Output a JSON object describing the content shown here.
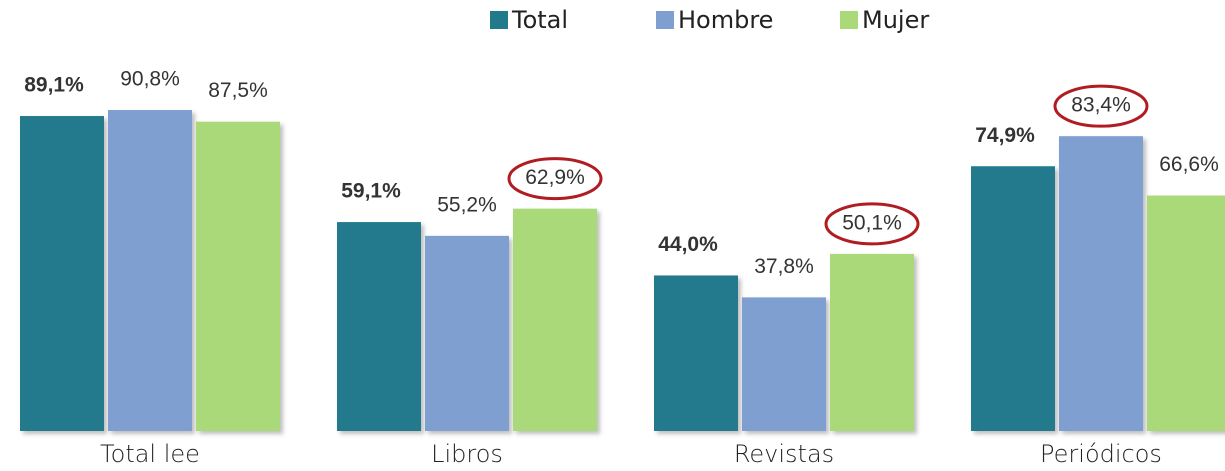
{
  "chart_data": {
    "type": "bar",
    "categories": [
      "Total lee",
      "Libros",
      "Revistas",
      "Periódicos"
    ],
    "series": [
      {
        "name": "Total",
        "color": "#217a8c",
        "values": [
          89.1,
          59.1,
          44.0,
          74.9
        ],
        "value_labels": [
          "89,1%",
          "59,1%",
          "44,0%",
          "74,9%"
        ]
      },
      {
        "name": "Hombre",
        "color": "#7f9fd1",
        "values": [
          90.8,
          55.2,
          37.8,
          83.4
        ],
        "value_labels": [
          "90,8%",
          "55,2%",
          "37,8%",
          "83,4%"
        ]
      },
      {
        "name": "Mujer",
        "color": "#a9d978",
        "values": [
          87.5,
          62.9,
          50.1,
          66.6
        ],
        "value_labels": [
          "87,5%",
          "62,9%",
          "50,1%",
          "66,6%"
        ]
      }
    ],
    "ylim": [
      0,
      100
    ],
    "bold_series": 0,
    "circled": [
      {
        "series": 2,
        "category": 1
      },
      {
        "series": 2,
        "category": 2
      },
      {
        "series": 1,
        "category": 3
      }
    ],
    "legend": "top"
  }
}
